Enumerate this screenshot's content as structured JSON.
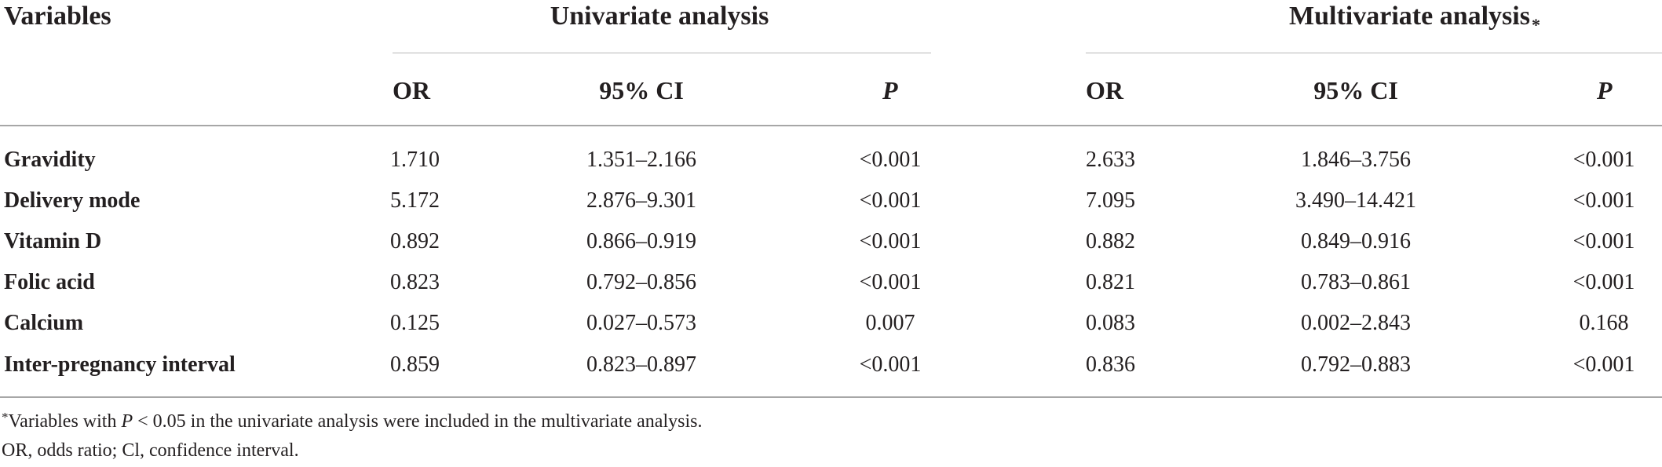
{
  "header": {
    "variables": "Variables",
    "univariate": "Univariate analysis",
    "multivariate": "Multivariate analysis",
    "multivariate_mark": "*",
    "sub": {
      "or": "OR",
      "ci": "95% CI",
      "p": "P"
    }
  },
  "rows": [
    {
      "label": "Gravidity",
      "u_or": "1.710",
      "u_ci": "1.351–2.166",
      "u_p": "<0.001",
      "m_or": "2.633",
      "m_ci": "1.846–3.756",
      "m_p": "<0.001"
    },
    {
      "label": "Delivery mode",
      "u_or": "5.172",
      "u_ci": "2.876–9.301",
      "u_p": "<0.001",
      "m_or": "7.095",
      "m_ci": "3.490–14.421",
      "m_p": "<0.001"
    },
    {
      "label": "Vitamin D",
      "u_or": "0.892",
      "u_ci": "0.866–0.919",
      "u_p": "<0.001",
      "m_or": "0.882",
      "m_ci": "0.849–0.916",
      "m_p": "<0.001"
    },
    {
      "label": "Folic acid",
      "u_or": "0.823",
      "u_ci": "0.792–0.856",
      "u_p": "<0.001",
      "m_or": "0.821",
      "m_ci": "0.783–0.861",
      "m_p": "<0.001"
    },
    {
      "label": "Calcium",
      "u_or": "0.125",
      "u_ci": "0.027–0.573",
      "u_p": "0.007",
      "m_or": "0.083",
      "m_ci": "0.002–2.843",
      "m_p": "0.168"
    },
    {
      "label": "Inter-pregnancy interval",
      "u_or": "0.859",
      "u_ci": "0.823–0.897",
      "u_p": "<0.001",
      "m_or": "0.836",
      "m_ci": "0.792–0.883",
      "m_p": "<0.001"
    }
  ],
  "footnotes": {
    "mark": "*",
    "note1_pre": "Variables with ",
    "note1_p": "P",
    "note1_post": " < 0.05 in the univariate analysis were included in the multivariate analysis.",
    "note2": "OR, odds ratio; Cl, confidence interval."
  }
}
